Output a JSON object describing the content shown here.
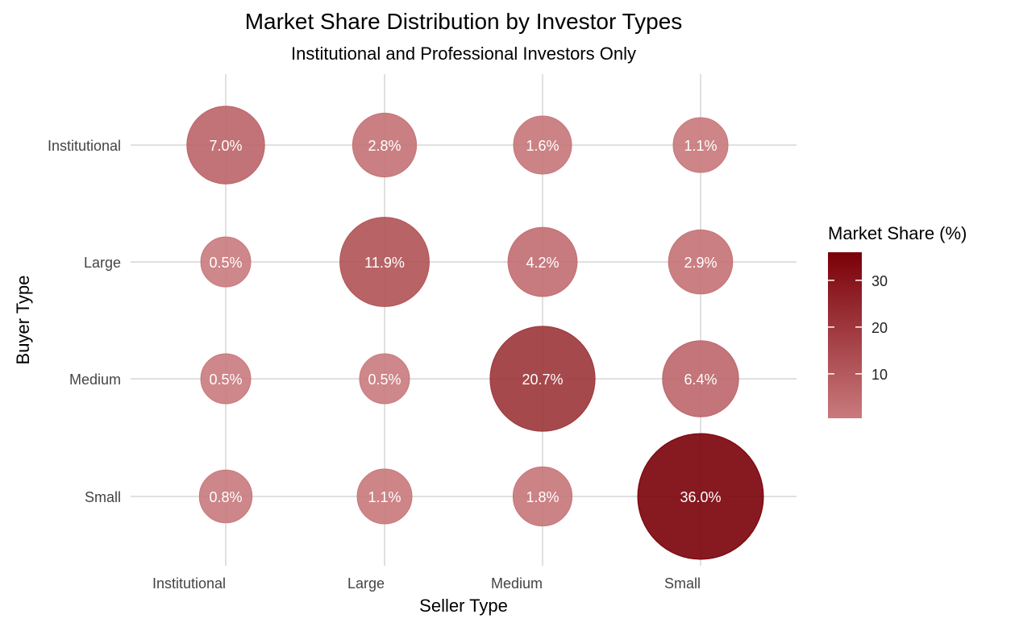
{
  "chart_data": {
    "type": "scatter",
    "title": "Market Share Distribution by Investor Types",
    "subtitle": "Institutional and Professional Investors Only",
    "xlabel": "Seller Type",
    "ylabel": "Buyer Type",
    "x_categories": [
      "Institutional",
      "Large",
      "Medium",
      "Small"
    ],
    "y_categories": [
      "Institutional",
      "Large",
      "Medium",
      "Small"
    ],
    "points": [
      {
        "seller": "Institutional",
        "buyer": "Institutional",
        "value": 7.0,
        "label": "7.0%"
      },
      {
        "seller": "Large",
        "buyer": "Institutional",
        "value": 2.8,
        "label": "2.8%"
      },
      {
        "seller": "Medium",
        "buyer": "Institutional",
        "value": 1.6,
        "label": "1.6%"
      },
      {
        "seller": "Small",
        "buyer": "Institutional",
        "value": 1.1,
        "label": "1.1%"
      },
      {
        "seller": "Institutional",
        "buyer": "Large",
        "value": 0.5,
        "label": "0.5%"
      },
      {
        "seller": "Large",
        "buyer": "Large",
        "value": 11.9,
        "label": "11.9%"
      },
      {
        "seller": "Medium",
        "buyer": "Large",
        "value": 4.2,
        "label": "4.2%"
      },
      {
        "seller": "Small",
        "buyer": "Large",
        "value": 2.9,
        "label": "2.9%"
      },
      {
        "seller": "Institutional",
        "buyer": "Medium",
        "value": 0.5,
        "label": "0.5%"
      },
      {
        "seller": "Large",
        "buyer": "Medium",
        "value": 0.5,
        "label": "0.5%"
      },
      {
        "seller": "Medium",
        "buyer": "Medium",
        "value": 20.7,
        "label": "20.7%"
      },
      {
        "seller": "Small",
        "buyer": "Medium",
        "value": 6.4,
        "label": "6.4%"
      },
      {
        "seller": "Institutional",
        "buyer": "Small",
        "value": 0.8,
        "label": "0.8%"
      },
      {
        "seller": "Large",
        "buyer": "Small",
        "value": 1.1,
        "label": "1.1%"
      },
      {
        "seller": "Medium",
        "buyer": "Small",
        "value": 1.8,
        "label": "1.8%"
      },
      {
        "seller": "Small",
        "buyer": "Small",
        "value": 36.0,
        "label": "36.0%"
      }
    ],
    "legend": {
      "title": "Market Share (%)",
      "ticks": [
        10,
        20,
        30
      ],
      "range": [
        0.5,
        36.0
      ],
      "placement": "right"
    },
    "colors": {
      "low": "#c97a7d",
      "high": "#7a0008",
      "grid": "#e0e0e0",
      "label_text": "#ffffff"
    },
    "grid": true
  }
}
